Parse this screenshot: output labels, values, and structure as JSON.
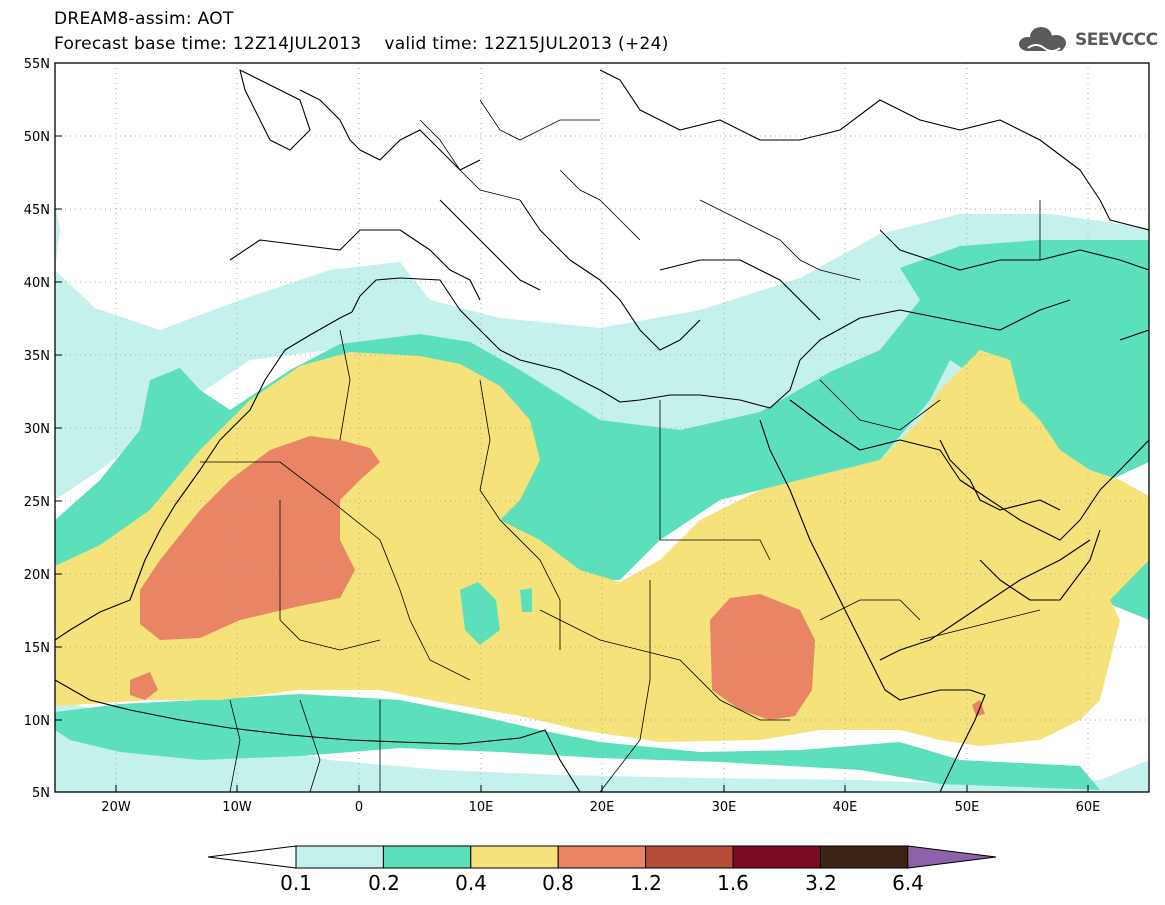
{
  "header": {
    "line1": "DREAM8-assim: AOT",
    "base_label": "Forecast base time: 12Z14JUL2013",
    "valid_label": "valid time: 12Z15JUL2013 (+24)"
  },
  "logo": {
    "text": "SEEVCCC",
    "icon": "cloud-icon"
  },
  "map": {
    "lat_labels": [
      "55N",
      "50N",
      "45N",
      "40N",
      "35N",
      "30N",
      "25N",
      "20N",
      "15N",
      "10N",
      "5N"
    ],
    "lon_labels": [
      "20W",
      "10W",
      "0",
      "10E",
      "20E",
      "30E",
      "40E",
      "50E",
      "60E"
    ]
  },
  "colorbar": {
    "labels": [
      "0.1",
      "0.2",
      "0.4",
      "0.8",
      "1.2",
      "1.6",
      "3.2",
      "6.4"
    ],
    "colors": [
      "#ffffff",
      "#c4f1ec",
      "#5ce0bb",
      "#f6e27a",
      "#e98565",
      "#b54c3a",
      "#7c0a24",
      "#3c2415",
      "#8d62a8"
    ]
  },
  "colors": {
    "level1": "#c4f1ec",
    "level2": "#5ce0bb",
    "level3": "#f6e27a",
    "level4": "#e98565"
  }
}
